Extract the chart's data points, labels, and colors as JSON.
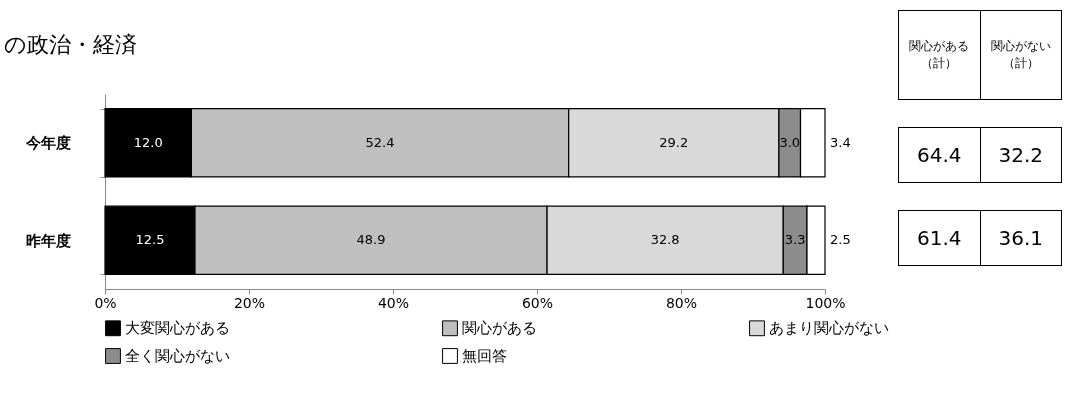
{
  "chart_data": {
    "type": "bar",
    "orientation": "horizontal",
    "stacked": true,
    "subtitle": "の政治・経済",
    "categories": [
      "今年度",
      "昨年度"
    ],
    "series": [
      {
        "name": "大変関心がある",
        "color": "#000000",
        "values": [
          12.0,
          12.5
        ],
        "value_labels": [
          "12.0",
          "12.5"
        ]
      },
      {
        "name": "関心がある",
        "color": "#bfbfbf",
        "values": [
          52.4,
          48.9
        ],
        "value_labels": [
          "52.4",
          "48.9"
        ]
      },
      {
        "name": "あまり関心がない",
        "color": "#d9d9d9",
        "values": [
          29.2,
          32.8
        ],
        "value_labels": [
          "29.2",
          "32.8"
        ]
      },
      {
        "name": "全く関心がない",
        "color": "#8c8c8c",
        "values": [
          3.0,
          3.3
        ],
        "value_labels": [
          "3.0",
          "3.3"
        ]
      },
      {
        "name": "無回答",
        "color": "#ffffff",
        "values": [
          3.4,
          2.5
        ],
        "value_labels": [
          "3.4",
          "2.5"
        ]
      }
    ],
    "xlim": [
      0,
      100
    ],
    "xticks": [
      {
        "value": 0,
        "label": "0%"
      },
      {
        "value": 20,
        "label": "20%"
      },
      {
        "value": 40,
        "label": "40%"
      },
      {
        "value": 60,
        "label": "60%"
      },
      {
        "value": 80,
        "label": "80%"
      },
      {
        "value": 100,
        "label": "100%"
      }
    ],
    "legend": "bottom",
    "grid": false,
    "annotations": [
      "関心がある（計）",
      "関心がない（計）",
      "64.4",
      "32.2",
      "61.4",
      "36.1"
    ]
  }
}
